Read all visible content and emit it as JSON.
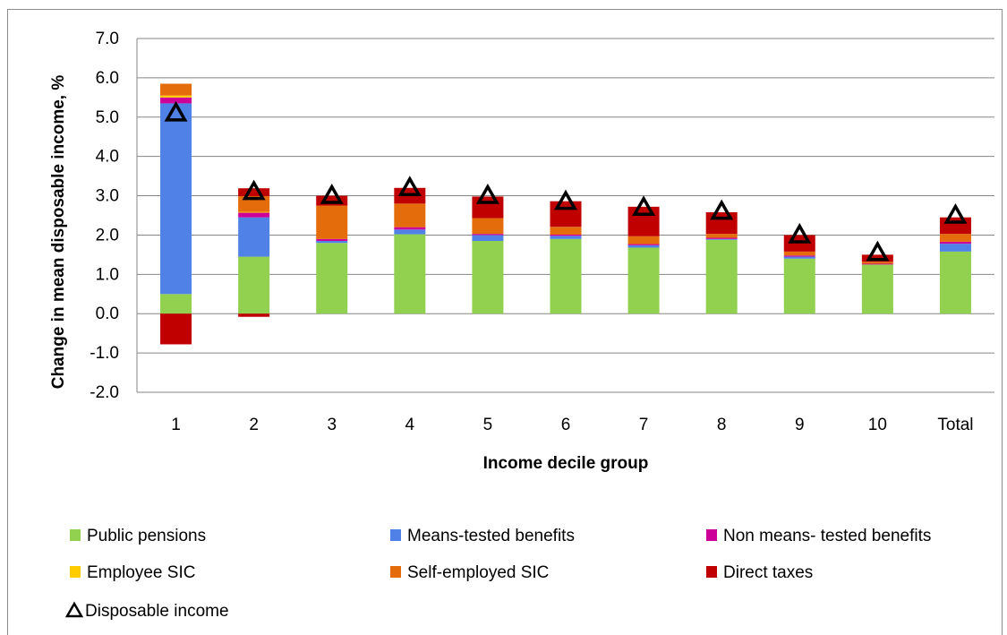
{
  "chart_data": {
    "type": "bar",
    "stacked": true,
    "xlabel": "Income decile group",
    "ylabel": "Change in mean disposable income, %",
    "ylim": [
      -2.0,
      7.0
    ],
    "ytick_step": 1.0,
    "grid": true,
    "legend_position": "bottom",
    "categories": [
      "1",
      "2",
      "3",
      "4",
      "5",
      "6",
      "7",
      "8",
      "9",
      "10",
      "Total"
    ],
    "series": [
      {
        "name": "Public pensions",
        "color": "#92d050",
        "values": [
          0.5,
          1.45,
          1.8,
          2.02,
          1.85,
          1.9,
          1.68,
          1.88,
          1.4,
          1.25,
          1.58
        ]
      },
      {
        "name": "Means-tested benefits",
        "color": "#4f81e6",
        "values": [
          4.85,
          1.0,
          0.05,
          0.12,
          0.15,
          0.08,
          0.06,
          0.02,
          0.05,
          0.0,
          0.2
        ]
      },
      {
        "name": "Non means- tested benefits",
        "color": "#cc0099",
        "values": [
          0.15,
          0.12,
          0.05,
          0.06,
          0.03,
          0.03,
          0.03,
          0.03,
          0.03,
          0.02,
          0.05
        ]
      },
      {
        "name": "Employee SIC",
        "color": "#ffcc00",
        "values": [
          0.05,
          0.02,
          0.0,
          0.0,
          0.0,
          0.0,
          0.0,
          0.0,
          0.0,
          0.0,
          0.0
        ]
      },
      {
        "name": "Self-employed SIC",
        "color": "#e46c0a",
        "values": [
          0.3,
          0.4,
          0.85,
          0.6,
          0.4,
          0.2,
          0.2,
          0.1,
          0.1,
          0.05,
          0.2
        ]
      },
      {
        "name": "Direct taxes",
        "color": "#c00000",
        "values": [
          -0.78,
          0.2,
          0.25,
          0.4,
          0.55,
          0.65,
          0.75,
          0.55,
          0.42,
          0.18,
          0.42
        ]
      }
    ],
    "extra_negative": {
      "series": "Direct taxes",
      "values": [
        null,
        -0.08,
        null,
        null,
        null,
        null,
        null,
        null,
        null,
        null,
        null
      ]
    },
    "marker_series": {
      "name": "Disposable income",
      "marker": "triangle",
      "values": [
        5.1,
        3.1,
        3.0,
        3.2,
        3.0,
        2.85,
        2.7,
        2.6,
        2.0,
        1.55,
        2.5
      ]
    }
  },
  "legend": {
    "items": [
      {
        "label": "Public pensions",
        "color": "#92d050"
      },
      {
        "label": "Means-tested benefits",
        "color": "#4f81e6"
      },
      {
        "label": "Non means- tested benefits",
        "color": "#cc0099"
      },
      {
        "label": "Employee SIC",
        "color": "#ffcc00"
      },
      {
        "label": "Self-employed SIC",
        "color": "#e46c0a"
      },
      {
        "label": "Direct taxes",
        "color": "#c00000"
      }
    ],
    "marker_label": "Disposable income"
  }
}
